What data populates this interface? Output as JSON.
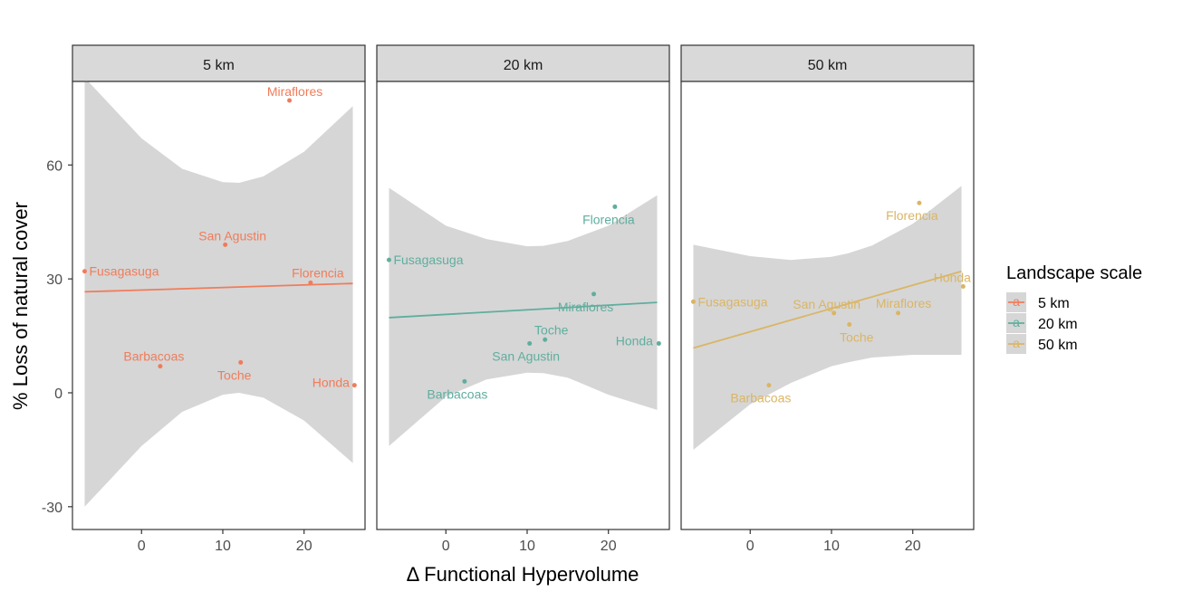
{
  "chart_data": {
    "type": "scatter",
    "xlabel": "Δ Functional Hypervolume",
    "ylabel": "% Loss of natural cover",
    "xlim": [
      -8.5,
      27.5
    ],
    "ylim": [
      -36,
      82
    ],
    "x_ticks": [
      0,
      10,
      20
    ],
    "y_ticks": [
      -30,
      0,
      30,
      60
    ],
    "grid": false,
    "legend": {
      "title": "Landscape scale",
      "position": "right",
      "entries": [
        "5 km",
        "20 km",
        "50 km"
      ]
    },
    "panels": [
      {
        "strip": "5 km",
        "color": "#f07c5a",
        "fit": {
          "x": [
            -7,
            26
          ],
          "y": [
            26.6,
            28.8
          ]
        },
        "ribbon": {
          "x": [
            -7,
            0,
            5,
            10,
            12,
            15,
            20,
            26
          ],
          "upper": [
            83,
            67,
            59,
            55.5,
            55.3,
            57,
            63.5,
            75.5
          ],
          "lower": [
            -30,
            -14,
            -5,
            -0.5,
            0,
            -1.3,
            -7.3,
            -18.5
          ]
        },
        "points": [
          {
            "label": "Miraflores",
            "x": 18.2,
            "y": 77
          },
          {
            "label": "San Agustin",
            "x": 10.3,
            "y": 39
          },
          {
            "label": "Fusagasuga",
            "x": -7.0,
            "y": 32
          },
          {
            "label": "Florencia",
            "x": 20.8,
            "y": 29
          },
          {
            "label": "Barbacoas",
            "x": 2.3,
            "y": 7
          },
          {
            "label": "Toche",
            "x": 12.2,
            "y": 8
          },
          {
            "label": "Honda",
            "x": 26.2,
            "y": 2
          }
        ]
      },
      {
        "strip": "20 km",
        "color": "#5fae9e",
        "fit": {
          "x": [
            -7,
            26
          ],
          "y": [
            19.8,
            23.8
          ]
        },
        "ribbon": {
          "x": [
            -7,
            0,
            5,
            10,
            12,
            15,
            20,
            26
          ],
          "upper": [
            54,
            44,
            40.5,
            38.6,
            38.7,
            40,
            44,
            52
          ],
          "lower": [
            -14,
            -1,
            3.5,
            5.3,
            5.2,
            4,
            -0.5,
            -4.5
          ]
        },
        "points": [
          {
            "label": "Florencia",
            "x": 20.8,
            "y": 49
          },
          {
            "label": "Fusagasuga",
            "x": -7.0,
            "y": 35
          },
          {
            "label": "Miraflores",
            "x": 18.2,
            "y": 26
          },
          {
            "label": "Toche",
            "x": 12.2,
            "y": 14
          },
          {
            "label": "San Agustin",
            "x": 10.3,
            "y": 13
          },
          {
            "label": "Honda",
            "x": 26.2,
            "y": 13
          },
          {
            "label": "Barbacoas",
            "x": 2.3,
            "y": 3
          }
        ]
      },
      {
        "strip": "50 km",
        "color": "#dab564",
        "fit": {
          "x": [
            -7,
            26
          ],
          "y": [
            11.8,
            32
          ]
        },
        "ribbon": {
          "x": [
            -7,
            0,
            5,
            10,
            12,
            15,
            20,
            26
          ],
          "upper": [
            39,
            36,
            35,
            35.8,
            36.7,
            38.8,
            44.5,
            54.5
          ],
          "lower": [
            -15,
            -3,
            2.6,
            7,
            8,
            9.3,
            10,
            10
          ]
        },
        "points": [
          {
            "label": "Florencia",
            "x": 20.8,
            "y": 50
          },
          {
            "label": "Honda",
            "x": 26.2,
            "y": 28
          },
          {
            "label": "Fusagasuga",
            "x": -7.0,
            "y": 24
          },
          {
            "label": "San Agustin",
            "x": 10.3,
            "y": 21
          },
          {
            "label": "Miraflores",
            "x": 18.2,
            "y": 21
          },
          {
            "label": "Toche",
            "x": 12.2,
            "y": 18
          },
          {
            "label": "Barbacoas",
            "x": 2.3,
            "y": 2
          }
        ]
      }
    ]
  }
}
